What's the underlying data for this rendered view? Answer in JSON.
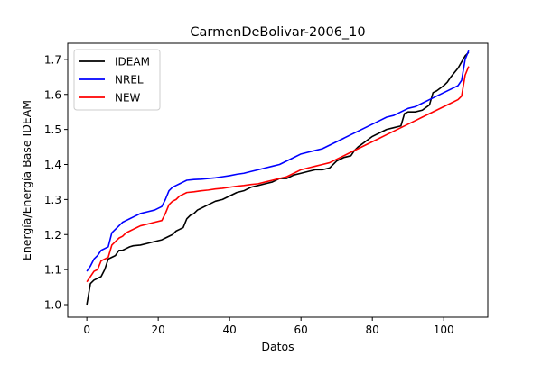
{
  "chart_data": {
    "type": "line",
    "title": "CarmenDeBolivar-2006_10",
    "xlabel": "Datos",
    "ylabel": "Energía/Energía Base IDEAM",
    "xlim": [
      -5.35,
      112.35
    ],
    "ylim": [
      0.964,
      1.746
    ],
    "xticks": [
      0,
      20,
      40,
      60,
      80,
      100
    ],
    "yticks": [
      1.0,
      1.1,
      1.2,
      1.3,
      1.4,
      1.5,
      1.6,
      1.7
    ],
    "xtick_labels": [
      "0",
      "20",
      "40",
      "60",
      "80",
      "100"
    ],
    "ytick_labels": [
      "1.0",
      "1.1",
      "1.2",
      "1.3",
      "1.4",
      "1.5",
      "1.6",
      "1.7"
    ],
    "grid": false,
    "legend_position": "upper-left",
    "series": [
      {
        "name": "IDEAM",
        "color": "#000000",
        "x": [
          0,
          1,
          2,
          3,
          4,
          5,
          6,
          7,
          8,
          9,
          10,
          11,
          12,
          13,
          15,
          17,
          19,
          21,
          22,
          24,
          25,
          26,
          27,
          28,
          29,
          30,
          31,
          32,
          34,
          36,
          38,
          40,
          42,
          44,
          46,
          48,
          50,
          52,
          54,
          56,
          58,
          60,
          62,
          64,
          66,
          68,
          69,
          70,
          72,
          74,
          75,
          76,
          78,
          80,
          82,
          84,
          86,
          88,
          89,
          90,
          92,
          94,
          96,
          97,
          98,
          100,
          101,
          102,
          104,
          106,
          107
        ],
        "y": [
          1.0,
          1.06,
          1.07,
          1.075,
          1.08,
          1.1,
          1.13,
          1.135,
          1.14,
          1.155,
          1.155,
          1.16,
          1.165,
          1.168,
          1.17,
          1.175,
          1.18,
          1.185,
          1.19,
          1.2,
          1.21,
          1.215,
          1.22,
          1.245,
          1.255,
          1.26,
          1.27,
          1.275,
          1.285,
          1.295,
          1.3,
          1.31,
          1.32,
          1.325,
          1.335,
          1.34,
          1.345,
          1.35,
          1.36,
          1.36,
          1.37,
          1.375,
          1.38,
          1.385,
          1.385,
          1.39,
          1.4,
          1.41,
          1.42,
          1.425,
          1.44,
          1.45,
          1.465,
          1.48,
          1.49,
          1.5,
          1.505,
          1.51,
          1.545,
          1.55,
          1.55,
          1.555,
          1.57,
          1.605,
          1.61,
          1.625,
          1.635,
          1.65,
          1.675,
          1.71,
          1.72
        ]
      },
      {
        "name": "NREL",
        "color": "#0000ff",
        "x": [
          0,
          1,
          2,
          3,
          4,
          5,
          6,
          7,
          8,
          9,
          10,
          11,
          12,
          13,
          14,
          15,
          17,
          19,
          21,
          22,
          23,
          24,
          25,
          26,
          27,
          28,
          30,
          32,
          34,
          36,
          38,
          40,
          42,
          44,
          46,
          48,
          50,
          52,
          54,
          56,
          58,
          60,
          62,
          64,
          66,
          68,
          70,
          72,
          74,
          76,
          78,
          80,
          82,
          84,
          86,
          88,
          90,
          92,
          94,
          96,
          98,
          100,
          102,
          104,
          105,
          106,
          107
        ],
        "y": [
          1.095,
          1.11,
          1.13,
          1.14,
          1.155,
          1.16,
          1.165,
          1.205,
          1.215,
          1.225,
          1.235,
          1.24,
          1.245,
          1.25,
          1.255,
          1.26,
          1.265,
          1.27,
          1.28,
          1.3,
          1.325,
          1.335,
          1.34,
          1.345,
          1.35,
          1.355,
          1.357,
          1.358,
          1.36,
          1.362,
          1.365,
          1.368,
          1.372,
          1.375,
          1.38,
          1.385,
          1.39,
          1.395,
          1.4,
          1.41,
          1.42,
          1.43,
          1.435,
          1.44,
          1.445,
          1.455,
          1.465,
          1.475,
          1.485,
          1.495,
          1.505,
          1.515,
          1.525,
          1.535,
          1.54,
          1.55,
          1.56,
          1.565,
          1.575,
          1.585,
          1.595,
          1.605,
          1.615,
          1.625,
          1.64,
          1.7,
          1.725
        ]
      },
      {
        "name": "NEW",
        "color": "#ff0000",
        "x": [
          0,
          1,
          2,
          3,
          4,
          5,
          6,
          7,
          8,
          9,
          10,
          11,
          12,
          13,
          14,
          15,
          17,
          19,
          21,
          22,
          23,
          24,
          25,
          26,
          27,
          28,
          30,
          32,
          34,
          36,
          38,
          40,
          42,
          44,
          46,
          48,
          50,
          52,
          54,
          56,
          58,
          60,
          62,
          64,
          66,
          68,
          70,
          72,
          74,
          76,
          78,
          80,
          82,
          84,
          86,
          88,
          90,
          92,
          94,
          96,
          98,
          100,
          102,
          104,
          105,
          106,
          107
        ],
        "y": [
          1.065,
          1.08,
          1.095,
          1.1,
          1.125,
          1.13,
          1.135,
          1.17,
          1.18,
          1.19,
          1.195,
          1.205,
          1.21,
          1.215,
          1.22,
          1.225,
          1.23,
          1.235,
          1.24,
          1.26,
          1.285,
          1.295,
          1.3,
          1.31,
          1.315,
          1.32,
          1.322,
          1.325,
          1.327,
          1.33,
          1.332,
          1.335,
          1.338,
          1.34,
          1.343,
          1.345,
          1.35,
          1.355,
          1.36,
          1.365,
          1.375,
          1.385,
          1.39,
          1.395,
          1.4,
          1.405,
          1.415,
          1.425,
          1.435,
          1.445,
          1.455,
          1.465,
          1.475,
          1.485,
          1.495,
          1.505,
          1.515,
          1.525,
          1.535,
          1.545,
          1.555,
          1.565,
          1.575,
          1.585,
          1.595,
          1.655,
          1.68
        ]
      }
    ]
  }
}
